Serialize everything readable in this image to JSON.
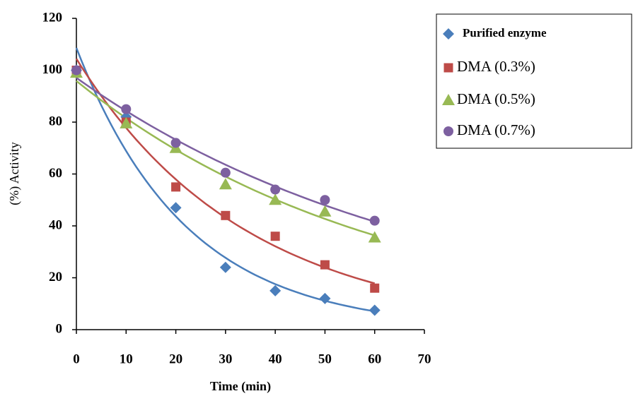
{
  "chart_data": {
    "type": "scatter",
    "x_label": "Time (min)",
    "y_label": "(%) Activity",
    "x": [
      0,
      10,
      20,
      30,
      40,
      50,
      60
    ],
    "xlim": [
      0,
      70
    ],
    "xticks": [
      0,
      10,
      20,
      30,
      40,
      50,
      60,
      70
    ],
    "ylim": [
      0,
      120
    ],
    "yticks": [
      0,
      20,
      40,
      60,
      80,
      100,
      120
    ],
    "grid": false,
    "trendline": "exponential",
    "legend": "right",
    "series": [
      {
        "name": "Purified enzyme",
        "color": "#4a7ebb",
        "marker": "diamond",
        "values": [
          100,
          82,
          47,
          24,
          15,
          12,
          7.5
        ]
      },
      {
        "name": "DMA (0.3%)",
        "color": "#be4b48",
        "marker": "square",
        "values": [
          100,
          80,
          55,
          44,
          36,
          25,
          16
        ]
      },
      {
        "name": "DMA (0.5%)",
        "color": "#98b954",
        "marker": "triangle",
        "values": [
          99,
          79.5,
          70,
          56,
          50,
          45.5,
          35.5
        ]
      },
      {
        "name": "DMA (0.7%)",
        "color": "#7d60a0",
        "marker": "circle",
        "values": [
          100,
          85,
          72,
          60.5,
          54,
          50,
          42
        ]
      }
    ]
  }
}
